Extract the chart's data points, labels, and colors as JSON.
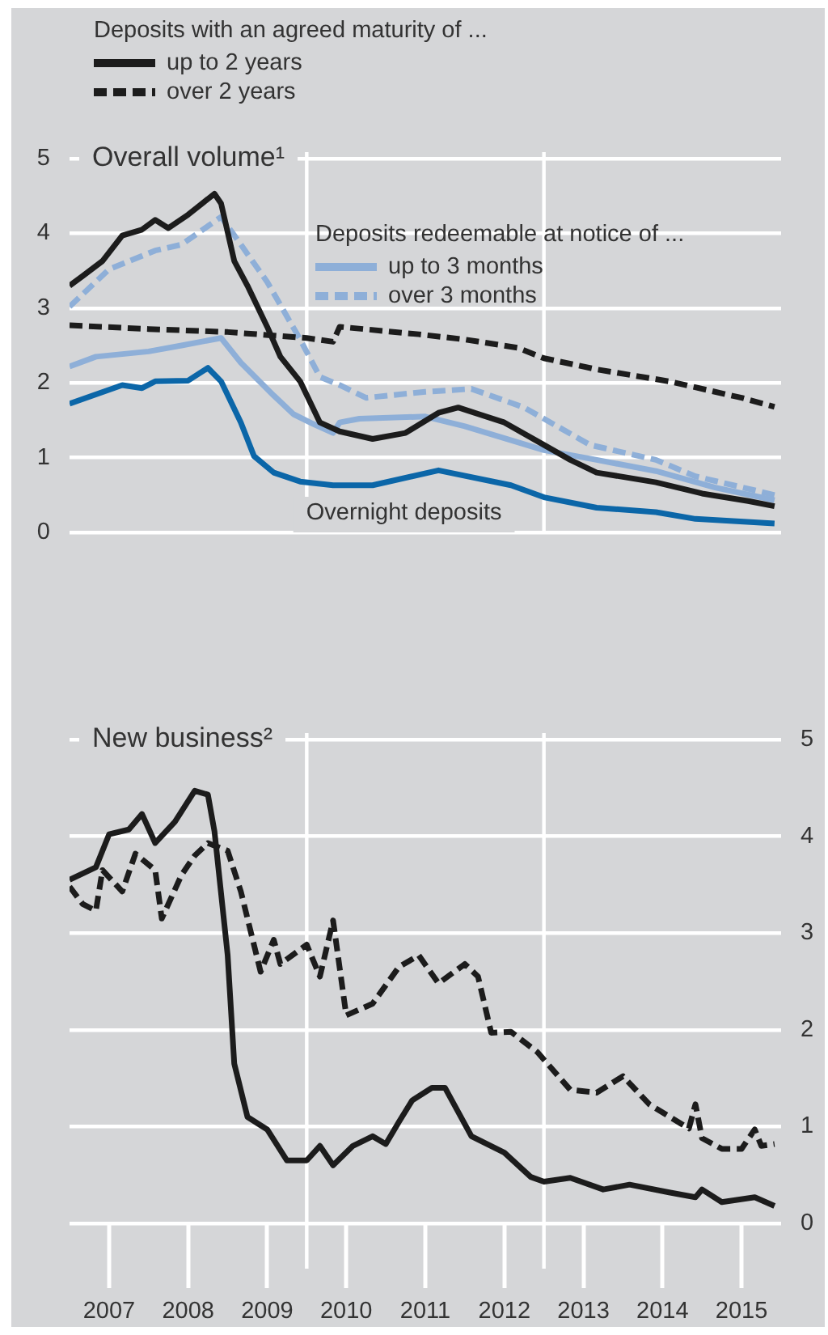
{
  "chart_data": [
    {
      "type": "line",
      "title": "Overall volume¹",
      "legend_title": "Deposits with an agreed maturity of ...",
      "annotations": [
        "Deposits redeemable at notice of ..."
      ],
      "legend": "top left",
      "grid": "y",
      "tick_labels": "y",
      "xlim": [
        "2007-01",
        "2016-01"
      ],
      "ylim": [
        0,
        5
      ],
      "yticks": [
        0,
        1,
        2,
        3,
        4,
        5
      ],
      "ref_lines": [
        {
          "axis": "x",
          "value": "2010-01",
          "color": "#ffffff"
        },
        {
          "axis": "x",
          "value": "2013-01",
          "color": "#ffffff"
        }
      ],
      "series": [
        {
          "name": "up to 2 years",
          "color": "#1c1c1c",
          "line_style": "solid",
          "x": [
            "2007-01",
            "2007-03",
            "2007-06",
            "2007-09",
            "2007-12",
            "2008-02",
            "2008-04",
            "2008-07",
            "2008-11",
            "2008-12",
            "2009-02",
            "2009-04",
            "2009-07",
            "2009-09",
            "2009-12",
            "2010-03",
            "2010-06",
            "2010-11",
            "2011-04",
            "2011-09",
            "2011-12",
            "2012-07",
            "2013-01",
            "2013-05",
            "2013-09",
            "2014-06",
            "2015-01",
            "2015-08",
            "2015-12"
          ],
          "values": [
            3.3,
            3.43,
            3.63,
            3.97,
            4.05,
            4.18,
            4.07,
            4.25,
            4.53,
            4.4,
            3.63,
            3.3,
            2.75,
            2.35,
            2.02,
            1.47,
            1.35,
            1.25,
            1.33,
            1.6,
            1.67,
            1.47,
            1.17,
            0.97,
            0.8,
            0.67,
            0.52,
            0.42,
            0.35
          ]
        },
        {
          "name": "over 2 years",
          "color": "#1c1c1c",
          "line_style": "dashed",
          "x": [
            "2007-01",
            "2008-01",
            "2009-01",
            "2010-01",
            "2010-05",
            "2010-06",
            "2011-06",
            "2012-01",
            "2012-09",
            "2013-01",
            "2013-09",
            "2014-08",
            "2015-07",
            "2015-12"
          ],
          "values": [
            2.77,
            2.72,
            2.68,
            2.6,
            2.55,
            2.75,
            2.65,
            2.58,
            2.47,
            2.33,
            2.18,
            2.02,
            1.8,
            1.68
          ]
        },
        {
          "name": "up to 3 months",
          "color": "#8eafd8",
          "line_style": "solid",
          "x": [
            "2007-01",
            "2007-05",
            "2008-01",
            "2008-06",
            "2008-12",
            "2009-03",
            "2009-08",
            "2009-11",
            "2010-02",
            "2010-05",
            "2010-06",
            "2010-09",
            "2011-07",
            "2012-01",
            "2013-01",
            "2013-09",
            "2014-06",
            "2015-03",
            "2015-12"
          ],
          "values": [
            2.22,
            2.35,
            2.42,
            2.5,
            2.6,
            2.27,
            1.83,
            1.58,
            1.45,
            1.33,
            1.47,
            1.52,
            1.55,
            1.42,
            1.1,
            0.97,
            0.82,
            0.6,
            0.43
          ]
        },
        {
          "name": "over 3 months",
          "color": "#8eafd8",
          "line_style": "dashed",
          "x": [
            "2007-01",
            "2007-07",
            "2008-02",
            "2008-06",
            "2008-12",
            "2009-03",
            "2009-07",
            "2009-12",
            "2010-03",
            "2010-06",
            "2010-10",
            "2011-07",
            "2012-02",
            "2012-10",
            "2013-03",
            "2013-08",
            "2014-06",
            "2014-12",
            "2015-12"
          ],
          "values": [
            3.02,
            3.52,
            3.77,
            3.85,
            4.22,
            3.85,
            3.35,
            2.58,
            2.08,
            1.97,
            1.8,
            1.88,
            1.92,
            1.67,
            1.42,
            1.17,
            0.97,
            0.75,
            0.5
          ]
        },
        {
          "name": "Overnight deposits",
          "color": "#0b66a8",
          "line_style": "solid",
          "x": [
            "2007-01",
            "2007-09",
            "2007-12",
            "2008-02",
            "2008-07",
            "2008-10",
            "2008-12",
            "2009-03",
            "2009-05",
            "2009-08",
            "2009-12",
            "2010-05",
            "2010-11",
            "2011-09",
            "2012-08",
            "2013-01",
            "2013-09",
            "2014-06",
            "2014-12",
            "2015-12"
          ],
          "values": [
            1.72,
            1.97,
            1.93,
            2.02,
            2.03,
            2.2,
            2.02,
            1.47,
            1.02,
            0.8,
            0.68,
            0.63,
            0.63,
            0.83,
            0.63,
            0.47,
            0.33,
            0.27,
            0.18,
            0.12
          ]
        }
      ]
    },
    {
      "type": "line",
      "title": "New business²",
      "grid": "y",
      "xlim": [
        "2007-01",
        "2016-01"
      ],
      "y2lim": [
        0,
        5
      ],
      "y2ticks": [
        0,
        1,
        2,
        3,
        4,
        5
      ],
      "xticks": [
        {
          "value": "2007-07",
          "label": "2007"
        },
        {
          "value": "2008-07",
          "label": "2008"
        },
        {
          "value": "2009-07",
          "label": "2009"
        },
        {
          "value": "2010-07",
          "label": "2010"
        },
        {
          "value": "2011-07",
          "label": "2011"
        },
        {
          "value": "2012-07",
          "label": "2012"
        },
        {
          "value": "2013-07",
          "label": "2013"
        },
        {
          "value": "2014-07",
          "label": "2014"
        },
        {
          "value": "2015-07",
          "label": "2015"
        }
      ],
      "ref_lines": [
        {
          "axis": "x",
          "value": "2010-01",
          "color": "#ffffff"
        },
        {
          "axis": "x",
          "value": "2013-01",
          "color": "#ffffff"
        }
      ],
      "series": [
        {
          "color": "#1c1c1c",
          "line_style": "solid",
          "axis": "y2",
          "x": [
            "2007-01",
            "2007-05",
            "2007-07",
            "2007-10",
            "2007-12",
            "2008-02",
            "2008-05",
            "2008-08",
            "2008-10",
            "2008-11",
            "2009-01",
            "2009-02",
            "2009-04",
            "2009-07",
            "2009-10",
            "2010-01",
            "2010-03",
            "2010-05",
            "2010-08",
            "2010-11",
            "2011-01",
            "2011-03",
            "2011-05",
            "2011-08",
            "2011-10",
            "2012-02",
            "2012-07",
            "2012-11",
            "2013-01",
            "2013-05",
            "2013-10",
            "2014-02",
            "2014-08",
            "2014-12",
            "2015-01",
            "2015-04",
            "2015-09",
            "2015-12"
          ],
          "values": [
            3.55,
            3.68,
            4.02,
            4.07,
            4.23,
            3.93,
            4.15,
            4.47,
            4.43,
            4.05,
            2.77,
            1.65,
            1.1,
            0.97,
            0.65,
            0.65,
            0.8,
            0.6,
            0.8,
            0.9,
            0.82,
            1.05,
            1.27,
            1.4,
            1.4,
            0.9,
            0.73,
            0.48,
            0.43,
            0.47,
            0.35,
            0.4,
            0.32,
            0.27,
            0.35,
            0.22,
            0.27,
            0.18
          ]
        },
        {
          "color": "#1c1c1c",
          "line_style": "dashed",
          "axis": "y2",
          "x": [
            "2007-01",
            "2007-03",
            "2007-05",
            "2007-06",
            "2007-09",
            "2007-11",
            "2008-02",
            "2008-03",
            "2008-06",
            "2008-08",
            "2008-10",
            "2009-01",
            "2009-03",
            "2009-06",
            "2009-08",
            "2009-09",
            "2010-01",
            "2010-03",
            "2010-05",
            "2010-07",
            "2010-11",
            "2011-03",
            "2011-06",
            "2011-09",
            "2012-01",
            "2012-03",
            "2012-05",
            "2012-08",
            "2012-12",
            "2013-05",
            "2013-09",
            "2014-01",
            "2014-05",
            "2014-11",
            "2014-12",
            "2015-01",
            "2015-04",
            "2015-07",
            "2015-09",
            "2015-10",
            "2015-12"
          ],
          "values": [
            3.48,
            3.3,
            3.23,
            3.65,
            3.43,
            3.82,
            3.65,
            3.15,
            3.6,
            3.8,
            3.93,
            3.85,
            3.43,
            2.6,
            2.93,
            2.68,
            2.88,
            2.55,
            3.13,
            2.15,
            2.27,
            2.65,
            2.77,
            2.48,
            2.68,
            2.55,
            1.97,
            1.98,
            1.77,
            1.38,
            1.35,
            1.52,
            1.23,
            0.98,
            1.23,
            0.88,
            0.77,
            0.77,
            0.97,
            0.8,
            0.82
          ]
        }
      ]
    }
  ]
}
